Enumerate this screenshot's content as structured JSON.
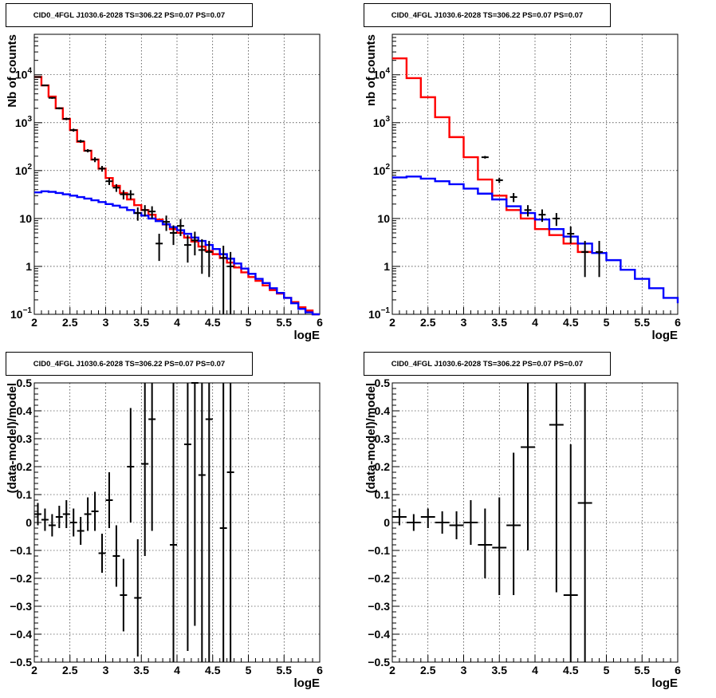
{
  "chart_data": [
    {
      "type": "line",
      "panel": "top-left",
      "title": "CID0_4FGL J1030.6-2028 TS=306.22 PS=0.07 PS=0.07",
      "xlabel": "logE",
      "ylabel": "Nb of counts",
      "xlim": [
        2,
        6
      ],
      "ylim": [
        0.1,
        70000
      ],
      "yscale": "log",
      "grid": true,
      "xticks": [
        "2",
        "2.5",
        "3",
        "3.5",
        "4",
        "4.5",
        "5",
        "5.5",
        "6"
      ],
      "yticks": [
        {
          "v": 0.1,
          "b": "10",
          "e": "−1"
        },
        {
          "v": 1,
          "b": "1",
          "e": ""
        },
        {
          "v": 10,
          "b": "10",
          "e": ""
        },
        {
          "v": 100,
          "b": "10",
          "e": "2"
        },
        {
          "v": 1000,
          "b": "10",
          "e": "3"
        },
        {
          "v": 10000,
          "b": "10",
          "e": "4"
        }
      ],
      "series": [
        {
          "color": "#ff0000",
          "kind": "step",
          "edges": [
            2,
            2.1,
            2.2,
            2.3,
            2.4,
            2.5,
            2.6,
            2.7,
            2.8,
            2.9,
            3,
            3.1,
            3.2,
            3.3,
            3.4,
            3.5,
            3.6,
            3.7,
            3.8,
            3.9,
            4,
            4.1,
            4.2,
            4.3,
            4.4,
            4.5,
            4.6,
            4.7,
            4.8,
            4.9,
            5,
            5.1,
            5.2,
            5.3,
            5.4,
            5.5,
            5.6,
            5.7,
            5.8,
            5.9,
            6
          ],
          "values": [
            9000,
            6000,
            3500,
            2000,
            1200,
            700,
            400,
            260,
            170,
            110,
            70,
            48,
            34,
            25,
            19,
            15,
            12,
            9.5,
            7.5,
            6,
            5,
            4,
            3.3,
            2.6,
            2.1,
            1.8,
            1.5,
            1.2,
            0.95,
            0.75,
            0.6,
            0.5,
            0.4,
            0.32,
            0.27,
            0.22,
            0.18,
            0.14,
            0.12,
            0.1
          ]
        },
        {
          "color": "#0000ff",
          "kind": "step",
          "edges": [
            2,
            2.1,
            2.2,
            2.3,
            2.4,
            2.5,
            2.6,
            2.7,
            2.8,
            2.9,
            3,
            3.1,
            3.2,
            3.3,
            3.4,
            3.5,
            3.6,
            3.7,
            3.8,
            3.9,
            4,
            4.1,
            4.2,
            4.3,
            4.4,
            4.5,
            4.6,
            4.7,
            4.8,
            4.9,
            5,
            5.1,
            5.2,
            5.3,
            5.4,
            5.5,
            5.6,
            5.7,
            5.8,
            5.9,
            6
          ],
          "values": [
            35,
            37,
            36,
            34,
            32,
            30,
            28,
            26,
            24,
            22,
            20,
            18.5,
            17,
            15,
            13,
            11.5,
            10,
            8.8,
            7.6,
            6.6,
            5.7,
            4.8,
            4,
            3.4,
            2.8,
            2.3,
            1.8,
            1.45,
            1.15,
            0.9,
            0.7,
            0.55,
            0.45,
            0.35,
            0.28,
            0.22,
            0.17,
            0.13,
            0.11,
            0.1
          ]
        },
        {
          "color": "#000000",
          "kind": "points",
          "points": [
            {
              "x": 2.05,
              "y": 9000,
              "lo": 8700,
              "hi": 9300
            },
            {
              "x": 2.15,
              "y": 6000,
              "lo": 5800,
              "hi": 6200
            },
            {
              "x": 2.25,
              "y": 3300,
              "lo": 3150,
              "hi": 3450
            },
            {
              "x": 2.35,
              "y": 2000,
              "lo": 1900,
              "hi": 2100
            },
            {
              "x": 2.45,
              "y": 1200,
              "lo": 1130,
              "hi": 1270
            },
            {
              "x": 2.55,
              "y": 700,
              "lo": 650,
              "hi": 750
            },
            {
              "x": 2.65,
              "y": 410,
              "lo": 380,
              "hi": 440
            },
            {
              "x": 2.75,
              "y": 260,
              "lo": 240,
              "hi": 280
            },
            {
              "x": 2.85,
              "y": 170,
              "lo": 150,
              "hi": 190
            },
            {
              "x": 2.95,
              "y": 110,
              "lo": 95,
              "hi": 125
            },
            {
              "x": 3.05,
              "y": 60,
              "lo": 50,
              "hi": 70
            },
            {
              "x": 3.15,
              "y": 44,
              "lo": 36,
              "hi": 52
            },
            {
              "x": 3.25,
              "y": 32,
              "lo": 25,
              "hi": 39
            },
            {
              "x": 3.35,
              "y": 32,
              "lo": 25,
              "hi": 39
            },
            {
              "x": 3.45,
              "y": 13,
              "lo": 9,
              "hi": 17
            },
            {
              "x": 3.55,
              "y": 15,
              "lo": 11,
              "hi": 19
            },
            {
              "x": 3.65,
              "y": 14,
              "lo": 10,
              "hi": 18
            },
            {
              "x": 3.75,
              "y": 3,
              "lo": 1.3,
              "hi": 4.8
            },
            {
              "x": 3.85,
              "y": 8.5,
              "lo": 5.5,
              "hi": 11.5
            },
            {
              "x": 3.95,
              "y": 5,
              "lo": 2.8,
              "hi": 7.2
            },
            {
              "x": 4.05,
              "y": 7,
              "lo": 4.3,
              "hi": 9.7
            },
            {
              "x": 4.15,
              "y": 2.8,
              "lo": 1.2,
              "hi": 4.5
            },
            {
              "x": 4.25,
              "y": 3.5,
              "lo": 1.7,
              "hi": 5.3
            },
            {
              "x": 4.35,
              "y": 2.2,
              "lo": 0.7,
              "hi": 3.7
            },
            {
              "x": 4.45,
              "y": 2,
              "lo": 0.6,
              "hi": 3.4
            },
            {
              "x": 4.65,
              "y": 1.5,
              "lo": 0.1,
              "hi": 2.7
            },
            {
              "x": 4.75,
              "y": 1,
              "lo": 0.1,
              "hi": 2
            }
          ]
        }
      ]
    },
    {
      "type": "line",
      "panel": "top-right",
      "title": "CID0_4FGL J1030.6-2028 TS=306.22 PS=0.07 PS=0.07",
      "xlabel": "logE",
      "ylabel": "nb of counts",
      "xlim": [
        2,
        6
      ],
      "ylim": [
        0.1,
        70000
      ],
      "yscale": "log",
      "grid": true,
      "xticks": [
        "2",
        "2.5",
        "3",
        "3.5",
        "4",
        "4.5",
        "5",
        "5.5",
        "6"
      ],
      "yticks": [
        {
          "v": 0.1,
          "b": "10",
          "e": "−1"
        },
        {
          "v": 1,
          "b": "1",
          "e": ""
        },
        {
          "v": 10,
          "b": "10",
          "e": ""
        },
        {
          "v": 100,
          "b": "10",
          "e": "2"
        },
        {
          "v": 1000,
          "b": "10",
          "e": "3"
        },
        {
          "v": 10000,
          "b": "10",
          "e": "4"
        }
      ],
      "series": [
        {
          "color": "#ff0000",
          "kind": "step",
          "edges": [
            2,
            2.2,
            2.4,
            2.6,
            2.8,
            3,
            3.2,
            3.4,
            3.6,
            3.8,
            4,
            4.2,
            4.4,
            4.6,
            4.8
          ],
          "values": [
            22000,
            8500,
            3400,
            1300,
            500,
            190,
            65,
            30,
            15,
            10,
            6,
            4.5,
            3,
            2
          ],
          "end": 4.8
        },
        {
          "color": "#0000ff",
          "kind": "step",
          "edges": [
            2,
            2.2,
            2.4,
            2.6,
            2.8,
            3,
            3.2,
            3.4,
            3.6,
            3.8,
            4,
            4.2,
            4.4,
            4.6,
            4.8,
            5,
            5.2,
            5.4,
            5.6,
            5.8,
            6
          ],
          "values": [
            72,
            75,
            68,
            60,
            52,
            42,
            33,
            25,
            18,
            13,
            9.5,
            6,
            4.2,
            3,
            1.9,
            1.35,
            0.85,
            0.55,
            0.35,
            0.22,
            0.17
          ]
        },
        {
          "color": "#000000",
          "kind": "points",
          "points": [
            {
              "x": 3.3,
              "y": 190,
              "lo": 178,
              "hi": 202
            },
            {
              "x": 3.5,
              "y": 63,
              "lo": 55,
              "hi": 71
            },
            {
              "x": 3.7,
              "y": 28,
              "lo": 22,
              "hi": 34
            },
            {
              "x": 3.9,
              "y": 15,
              "lo": 11,
              "hi": 19
            },
            {
              "x": 4.1,
              "y": 12,
              "lo": 8.5,
              "hi": 15.5
            },
            {
              "x": 4.3,
              "y": 10,
              "lo": 7,
              "hi": 13
            },
            {
              "x": 4.5,
              "y": 4.8,
              "lo": 3,
              "hi": 6.8
            },
            {
              "x": 4.7,
              "y": 2,
              "lo": 0.6,
              "hi": 3.4
            },
            {
              "x": 4.9,
              "y": 2,
              "lo": 0.6,
              "hi": 3.4
            }
          ]
        }
      ]
    },
    {
      "type": "scatter",
      "panel": "bottom-left",
      "title": "CID0_4FGL J1030.6-2028 TS=306.22 PS=0.07 PS=0.07",
      "xlabel": "logE",
      "ylabel": "(data-model)/model",
      "xlim": [
        2,
        6
      ],
      "ylim": [
        -0.5,
        0.5
      ],
      "grid": true,
      "xticks": [
        "2",
        "2.5",
        "3",
        "3.5",
        "4",
        "4.5",
        "5",
        "5.5",
        "6"
      ],
      "yticks": [
        {
          "v": -0.5,
          "t": "−0.5"
        },
        {
          "v": -0.4,
          "t": "−0.4"
        },
        {
          "v": -0.3,
          "t": "−0.3"
        },
        {
          "v": -0.2,
          "t": "−0.2"
        },
        {
          "v": -0.1,
          "t": "−0.1"
        },
        {
          "v": 0,
          "t": "0"
        },
        {
          "v": 0.1,
          "t": "0.1"
        },
        {
          "v": 0.2,
          "t": "0.2"
        },
        {
          "v": 0.3,
          "t": "0.3"
        },
        {
          "v": 0.4,
          "t": "0.4"
        },
        {
          "v": 0.5,
          "t": "0.5"
        }
      ],
      "series": [
        {
          "color": "#000000",
          "kind": "points",
          "halfwidth": 0.05,
          "points": [
            {
              "x": 2.05,
              "y": 0.03,
              "lo": -0.01,
              "hi": 0.07
            },
            {
              "x": 2.15,
              "y": 0.01,
              "lo": -0.03,
              "hi": 0.05
            },
            {
              "x": 2.25,
              "y": -0.01,
              "lo": -0.05,
              "hi": 0.03
            },
            {
              "x": 2.35,
              "y": 0.02,
              "lo": -0.02,
              "hi": 0.06
            },
            {
              "x": 2.45,
              "y": 0.03,
              "lo": -0.02,
              "hi": 0.08
            },
            {
              "x": 2.55,
              "y": 0,
              "lo": -0.05,
              "hi": 0.05
            },
            {
              "x": 2.65,
              "y": -0.03,
              "lo": -0.08,
              "hi": 0.02
            },
            {
              "x": 2.75,
              "y": 0.03,
              "lo": -0.03,
              "hi": 0.09
            },
            {
              "x": 2.85,
              "y": 0.04,
              "lo": -0.03,
              "hi": 0.11
            },
            {
              "x": 2.95,
              "y": -0.11,
              "lo": -0.18,
              "hi": -0.04
            },
            {
              "x": 3.05,
              "y": 0.08,
              "lo": -0.02,
              "hi": 0.18
            },
            {
              "x": 3.15,
              "y": -0.12,
              "lo": -0.23,
              "hi": -0.01
            },
            {
              "x": 3.25,
              "y": -0.26,
              "lo": -0.39,
              "hi": -0.13
            },
            {
              "x": 3.35,
              "y": 0.2,
              "lo": 0,
              "hi": 0.41
            },
            {
              "x": 3.45,
              "y": -0.27,
              "lo": -0.48,
              "hi": -0.06
            },
            {
              "x": 3.55,
              "y": 0.21,
              "lo": -0.12,
              "hi": 0.5
            },
            {
              "x": 3.65,
              "y": 0.37,
              "lo": -0.03,
              "hi": 0.5
            },
            {
              "x": 3.95,
              "y": -0.08,
              "lo": -0.5,
              "hi": 0.5
            },
            {
              "x": 4.15,
              "y": 0.28,
              "lo": -0.46,
              "hi": 0.5
            },
            {
              "x": 4.25,
              "y": 0.5,
              "lo": -0.37,
              "hi": 0.5
            },
            {
              "x": 4.35,
              "y": 0.17,
              "lo": -0.5,
              "hi": 0.5
            },
            {
              "x": 4.45,
              "y": 0.37,
              "lo": -0.5,
              "hi": 0.5
            },
            {
              "x": 4.65,
              "y": -0.02,
              "lo": -0.5,
              "hi": 0.5
            },
            {
              "x": 4.75,
              "y": 0.18,
              "lo": -0.5,
              "hi": 0.5
            }
          ]
        }
      ]
    },
    {
      "type": "scatter",
      "panel": "bottom-right",
      "title": "CID0_4FGL J1030.6-2028 TS=306.22 PS=0.07 PS=0.07",
      "xlabel": "logE",
      "ylabel": "(data-model)/model",
      "xlim": [
        2,
        6
      ],
      "ylim": [
        -0.5,
        0.5
      ],
      "grid": true,
      "xticks": [
        "2",
        "2.5",
        "3",
        "3.5",
        "4",
        "4.5",
        "5",
        "5.5",
        "6"
      ],
      "yticks": [
        {
          "v": -0.5,
          "t": "−0.5"
        },
        {
          "v": -0.4,
          "t": "−0.4"
        },
        {
          "v": -0.3,
          "t": "−0.3"
        },
        {
          "v": -0.2,
          "t": "−0.2"
        },
        {
          "v": -0.1,
          "t": "−0.1"
        },
        {
          "v": 0,
          "t": "0"
        },
        {
          "v": 0.1,
          "t": "0.1"
        },
        {
          "v": 0.2,
          "t": "0.2"
        },
        {
          "v": 0.3,
          "t": "0.3"
        },
        {
          "v": 0.4,
          "t": "0.4"
        },
        {
          "v": 0.5,
          "t": "0.5"
        }
      ],
      "series": [
        {
          "color": "#000000",
          "kind": "points",
          "halfwidth": 0.1,
          "points": [
            {
              "x": 2.1,
              "y": 0.02,
              "lo": -0.01,
              "hi": 0.05
            },
            {
              "x": 2.3,
              "y": 0,
              "lo": -0.03,
              "hi": 0.03
            },
            {
              "x": 2.5,
              "y": 0.02,
              "lo": -0.02,
              "hi": 0.05
            },
            {
              "x": 2.7,
              "y": 0,
              "lo": -0.04,
              "hi": 0.04
            },
            {
              "x": 2.9,
              "y": -0.01,
              "lo": -0.06,
              "hi": 0.04
            },
            {
              "x": 3.1,
              "y": 0,
              "lo": -0.08,
              "hi": 0.08
            },
            {
              "x": 3.3,
              "y": -0.08,
              "lo": -0.2,
              "hi": 0.05
            },
            {
              "x": 3.5,
              "y": -0.09,
              "lo": -0.26,
              "hi": 0.09
            },
            {
              "x": 3.7,
              "y": -0.01,
              "lo": -0.26,
              "hi": 0.25
            },
            {
              "x": 3.9,
              "y": 0.27,
              "lo": -0.1,
              "hi": 0.5
            },
            {
              "x": 4.3,
              "y": 0.35,
              "lo": -0.25,
              "hi": 0.5
            },
            {
              "x": 4.5,
              "y": -0.26,
              "lo": -0.5,
              "hi": 0.28
            },
            {
              "x": 4.7,
              "y": 0.07,
              "lo": -0.5,
              "hi": 0.5
            }
          ]
        }
      ]
    }
  ]
}
